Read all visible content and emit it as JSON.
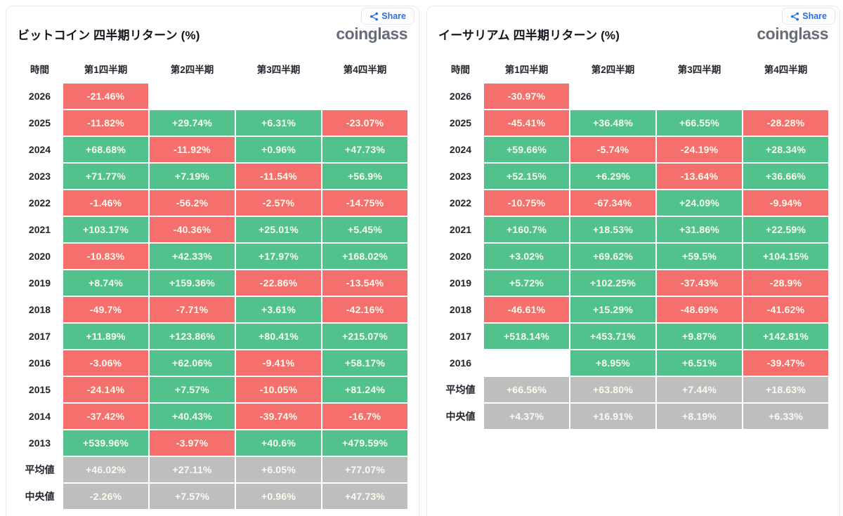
{
  "ui": {
    "share_label": "Share",
    "logo_text": "coinglass"
  },
  "colors": {
    "positive_green": "#52c28d",
    "negative_red": "#f5706d",
    "summary_gray": "#bebebe",
    "share_blue": "#2d6fd9",
    "logo_gray": "#666d78"
  },
  "chart_data": [
    {
      "type": "table",
      "title": "ビットコイン 四半期リターン (%)",
      "columns": [
        "時間",
        "第1四半期",
        "第2四半期",
        "第3四半期",
        "第4四半期"
      ],
      "rows": [
        {
          "label": "2026",
          "cells": [
            {
              "v": "-21.46%",
              "t": "neg"
            },
            null,
            null,
            null
          ]
        },
        {
          "label": "2025",
          "cells": [
            {
              "v": "-11.82%",
              "t": "neg"
            },
            {
              "v": "+29.74%",
              "t": "pos"
            },
            {
              "v": "+6.31%",
              "t": "pos"
            },
            {
              "v": "-23.07%",
              "t": "neg"
            }
          ]
        },
        {
          "label": "2024",
          "cells": [
            {
              "v": "+68.68%",
              "t": "pos"
            },
            {
              "v": "-11.92%",
              "t": "neg"
            },
            {
              "v": "+0.96%",
              "t": "pos"
            },
            {
              "v": "+47.73%",
              "t": "pos"
            }
          ]
        },
        {
          "label": "2023",
          "cells": [
            {
              "v": "+71.77%",
              "t": "pos"
            },
            {
              "v": "+7.19%",
              "t": "pos"
            },
            {
              "v": "-11.54%",
              "t": "neg"
            },
            {
              "v": "+56.9%",
              "t": "pos"
            }
          ]
        },
        {
          "label": "2022",
          "cells": [
            {
              "v": "-1.46%",
              "t": "neg"
            },
            {
              "v": "-56.2%",
              "t": "neg"
            },
            {
              "v": "-2.57%",
              "t": "neg"
            },
            {
              "v": "-14.75%",
              "t": "neg"
            }
          ]
        },
        {
          "label": "2021",
          "cells": [
            {
              "v": "+103.17%",
              "t": "pos"
            },
            {
              "v": "-40.36%",
              "t": "neg"
            },
            {
              "v": "+25.01%",
              "t": "pos"
            },
            {
              "v": "+5.45%",
              "t": "pos"
            }
          ]
        },
        {
          "label": "2020",
          "cells": [
            {
              "v": "-10.83%",
              "t": "neg"
            },
            {
              "v": "+42.33%",
              "t": "pos"
            },
            {
              "v": "+17.97%",
              "t": "pos"
            },
            {
              "v": "+168.02%",
              "t": "pos"
            }
          ]
        },
        {
          "label": "2019",
          "cells": [
            {
              "v": "+8.74%",
              "t": "pos"
            },
            {
              "v": "+159.36%",
              "t": "pos"
            },
            {
              "v": "-22.86%",
              "t": "neg"
            },
            {
              "v": "-13.54%",
              "t": "neg"
            }
          ]
        },
        {
          "label": "2018",
          "cells": [
            {
              "v": "-49.7%",
              "t": "neg"
            },
            {
              "v": "-7.71%",
              "t": "neg"
            },
            {
              "v": "+3.61%",
              "t": "pos"
            },
            {
              "v": "-42.16%",
              "t": "neg"
            }
          ]
        },
        {
          "label": "2017",
          "cells": [
            {
              "v": "+11.89%",
              "t": "pos"
            },
            {
              "v": "+123.86%",
              "t": "pos"
            },
            {
              "v": "+80.41%",
              "t": "pos"
            },
            {
              "v": "+215.07%",
              "t": "pos"
            }
          ]
        },
        {
          "label": "2016",
          "cells": [
            {
              "v": "-3.06%",
              "t": "neg"
            },
            {
              "v": "+62.06%",
              "t": "pos"
            },
            {
              "v": "-9.41%",
              "t": "neg"
            },
            {
              "v": "+58.17%",
              "t": "pos"
            }
          ]
        },
        {
          "label": "2015",
          "cells": [
            {
              "v": "-24.14%",
              "t": "neg"
            },
            {
              "v": "+7.57%",
              "t": "pos"
            },
            {
              "v": "-10.05%",
              "t": "neg"
            },
            {
              "v": "+81.24%",
              "t": "pos"
            }
          ]
        },
        {
          "label": "2014",
          "cells": [
            {
              "v": "-37.42%",
              "t": "neg"
            },
            {
              "v": "+40.43%",
              "t": "pos"
            },
            {
              "v": "-39.74%",
              "t": "neg"
            },
            {
              "v": "-16.7%",
              "t": "neg"
            }
          ]
        },
        {
          "label": "2013",
          "cells": [
            {
              "v": "+539.96%",
              "t": "pos"
            },
            {
              "v": "-3.97%",
              "t": "neg"
            },
            {
              "v": "+40.6%",
              "t": "pos"
            },
            {
              "v": "+479.59%",
              "t": "pos"
            }
          ]
        },
        {
          "label": "平均値",
          "cells": [
            {
              "v": "+46.02%",
              "t": "avg"
            },
            {
              "v": "+27.11%",
              "t": "avg"
            },
            {
              "v": "+6.05%",
              "t": "avg"
            },
            {
              "v": "+77.07%",
              "t": "avg"
            }
          ]
        },
        {
          "label": "中央値",
          "cells": [
            {
              "v": "-2.26%",
              "t": "avg"
            },
            {
              "v": "+7.57%",
              "t": "avg"
            },
            {
              "v": "+0.96%",
              "t": "avg"
            },
            {
              "v": "+47.73%",
              "t": "avg"
            }
          ]
        }
      ]
    },
    {
      "type": "table",
      "title": "イーサリアム 四半期リターン (%)",
      "columns": [
        "時間",
        "第1四半期",
        "第2四半期",
        "第3四半期",
        "第4四半期"
      ],
      "rows": [
        {
          "label": "2026",
          "cells": [
            {
              "v": "-30.97%",
              "t": "neg"
            },
            null,
            null,
            null
          ]
        },
        {
          "label": "2025",
          "cells": [
            {
              "v": "-45.41%",
              "t": "neg"
            },
            {
              "v": "+36.48%",
              "t": "pos"
            },
            {
              "v": "+66.55%",
              "t": "pos"
            },
            {
              "v": "-28.28%",
              "t": "neg"
            }
          ]
        },
        {
          "label": "2024",
          "cells": [
            {
              "v": "+59.66%",
              "t": "pos"
            },
            {
              "v": "-5.74%",
              "t": "neg"
            },
            {
              "v": "-24.19%",
              "t": "neg"
            },
            {
              "v": "+28.34%",
              "t": "pos"
            }
          ]
        },
        {
          "label": "2023",
          "cells": [
            {
              "v": "+52.15%",
              "t": "pos"
            },
            {
              "v": "+6.29%",
              "t": "pos"
            },
            {
              "v": "-13.64%",
              "t": "neg"
            },
            {
              "v": "+36.66%",
              "t": "pos"
            }
          ]
        },
        {
          "label": "2022",
          "cells": [
            {
              "v": "-10.75%",
              "t": "neg"
            },
            {
              "v": "-67.34%",
              "t": "neg"
            },
            {
              "v": "+24.09%",
              "t": "pos"
            },
            {
              "v": "-9.94%",
              "t": "neg"
            }
          ]
        },
        {
          "label": "2021",
          "cells": [
            {
              "v": "+160.7%",
              "t": "pos"
            },
            {
              "v": "+18.53%",
              "t": "pos"
            },
            {
              "v": "+31.86%",
              "t": "pos"
            },
            {
              "v": "+22.59%",
              "t": "pos"
            }
          ]
        },
        {
          "label": "2020",
          "cells": [
            {
              "v": "+3.02%",
              "t": "pos"
            },
            {
              "v": "+69.62%",
              "t": "pos"
            },
            {
              "v": "+59.5%",
              "t": "pos"
            },
            {
              "v": "+104.15%",
              "t": "pos"
            }
          ]
        },
        {
          "label": "2019",
          "cells": [
            {
              "v": "+5.72%",
              "t": "pos"
            },
            {
              "v": "+102.25%",
              "t": "pos"
            },
            {
              "v": "-37.43%",
              "t": "neg"
            },
            {
              "v": "-28.9%",
              "t": "neg"
            }
          ]
        },
        {
          "label": "2018",
          "cells": [
            {
              "v": "-46.61%",
              "t": "neg"
            },
            {
              "v": "+15.29%",
              "t": "pos"
            },
            {
              "v": "-48.69%",
              "t": "neg"
            },
            {
              "v": "-41.62%",
              "t": "neg"
            }
          ]
        },
        {
          "label": "2017",
          "cells": [
            {
              "v": "+518.14%",
              "t": "pos"
            },
            {
              "v": "+453.71%",
              "t": "pos"
            },
            {
              "v": "+9.87%",
              "t": "pos"
            },
            {
              "v": "+142.81%",
              "t": "pos"
            }
          ]
        },
        {
          "label": "2016",
          "cells": [
            null,
            {
              "v": "+8.95%",
              "t": "pos"
            },
            {
              "v": "+6.51%",
              "t": "pos"
            },
            {
              "v": "-39.47%",
              "t": "neg"
            }
          ]
        },
        {
          "label": "平均値",
          "cells": [
            {
              "v": "+66.56%",
              "t": "avg"
            },
            {
              "v": "+63.80%",
              "t": "avg"
            },
            {
              "v": "+7.44%",
              "t": "avg"
            },
            {
              "v": "+18.63%",
              "t": "avg"
            }
          ]
        },
        {
          "label": "中央値",
          "cells": [
            {
              "v": "+4.37%",
              "t": "avg"
            },
            {
              "v": "+16.91%",
              "t": "avg"
            },
            {
              "v": "+8.19%",
              "t": "avg"
            },
            {
              "v": "+6.33%",
              "t": "avg"
            }
          ]
        }
      ]
    }
  ]
}
